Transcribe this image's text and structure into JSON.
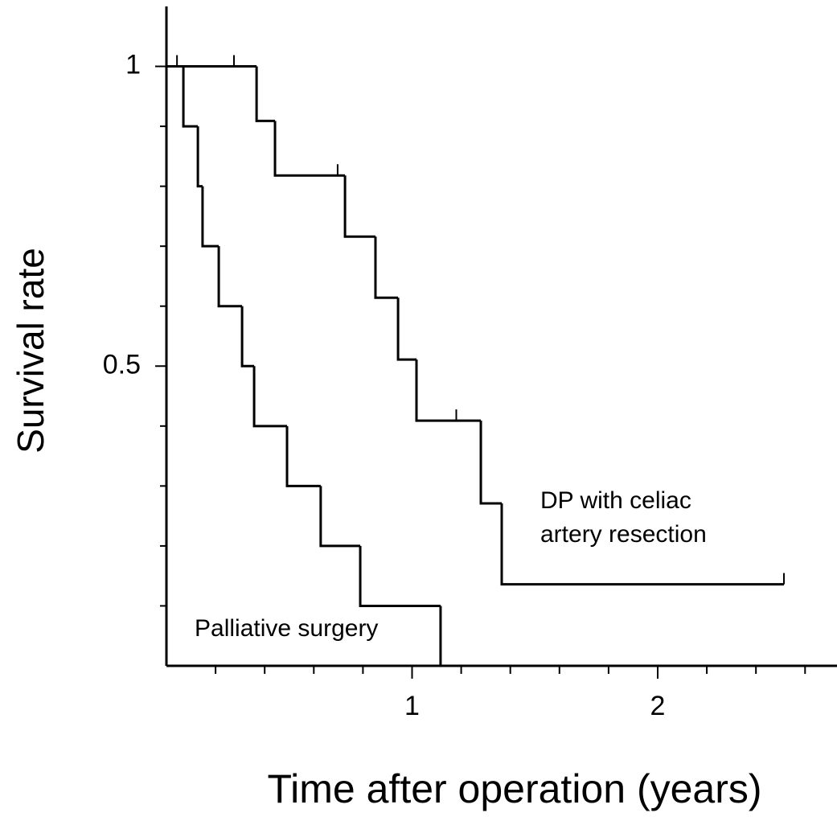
{
  "chart_data": {
    "type": "step",
    "x_label": "Time after operation (years)",
    "y_label": "Survival rate",
    "xlim": [
      0,
      2.73
    ],
    "ylim": [
      0,
      1.1
    ],
    "xticks": [
      1,
      2
    ],
    "yticks": [
      0.5,
      1
    ],
    "xminorticks": [
      0.2,
      0.4,
      0.6,
      0.8,
      1.2,
      1.4,
      1.6,
      1.8,
      2.2,
      2.4,
      2.6
    ],
    "yminorticks": [
      0.1,
      0.2,
      0.3,
      0.4,
      0.6,
      0.7,
      0.8,
      0.9
    ],
    "series": [
      {
        "name": "DP with celiac artery resection",
        "color": "#000000",
        "x": [
          0,
          0.367,
          0.442,
          0.727,
          0.851,
          0.943,
          1.018,
          1.28,
          1.365,
          2.514
        ],
        "values": [
          1,
          0.909,
          0.818,
          0.716,
          0.614,
          0.511,
          0.409,
          0.271,
          0.136,
          0.136
        ],
        "censored": {
          "x": [
            0.043,
            0.275,
            0.697,
            1.18,
            2.514
          ],
          "values": [
            1,
            1,
            0.818,
            0.409,
            0.136
          ]
        }
      },
      {
        "name": "Palliative surgery",
        "color": "#000000",
        "x": [
          0,
          0.069,
          0.128,
          0.147,
          0.213,
          0.308,
          0.357,
          0.491,
          0.628,
          0.789,
          1.116
        ],
        "values": [
          1,
          0.9,
          0.8,
          0.7,
          0.6,
          0.5,
          0.4,
          0.3,
          0.2,
          0.1,
          0
        ]
      }
    ],
    "annotations": [
      {
        "lines": [
          "DP with celiac",
          "artery resection"
        ]
      },
      {
        "lines": [
          "Palliative surgery"
        ]
      }
    ]
  }
}
